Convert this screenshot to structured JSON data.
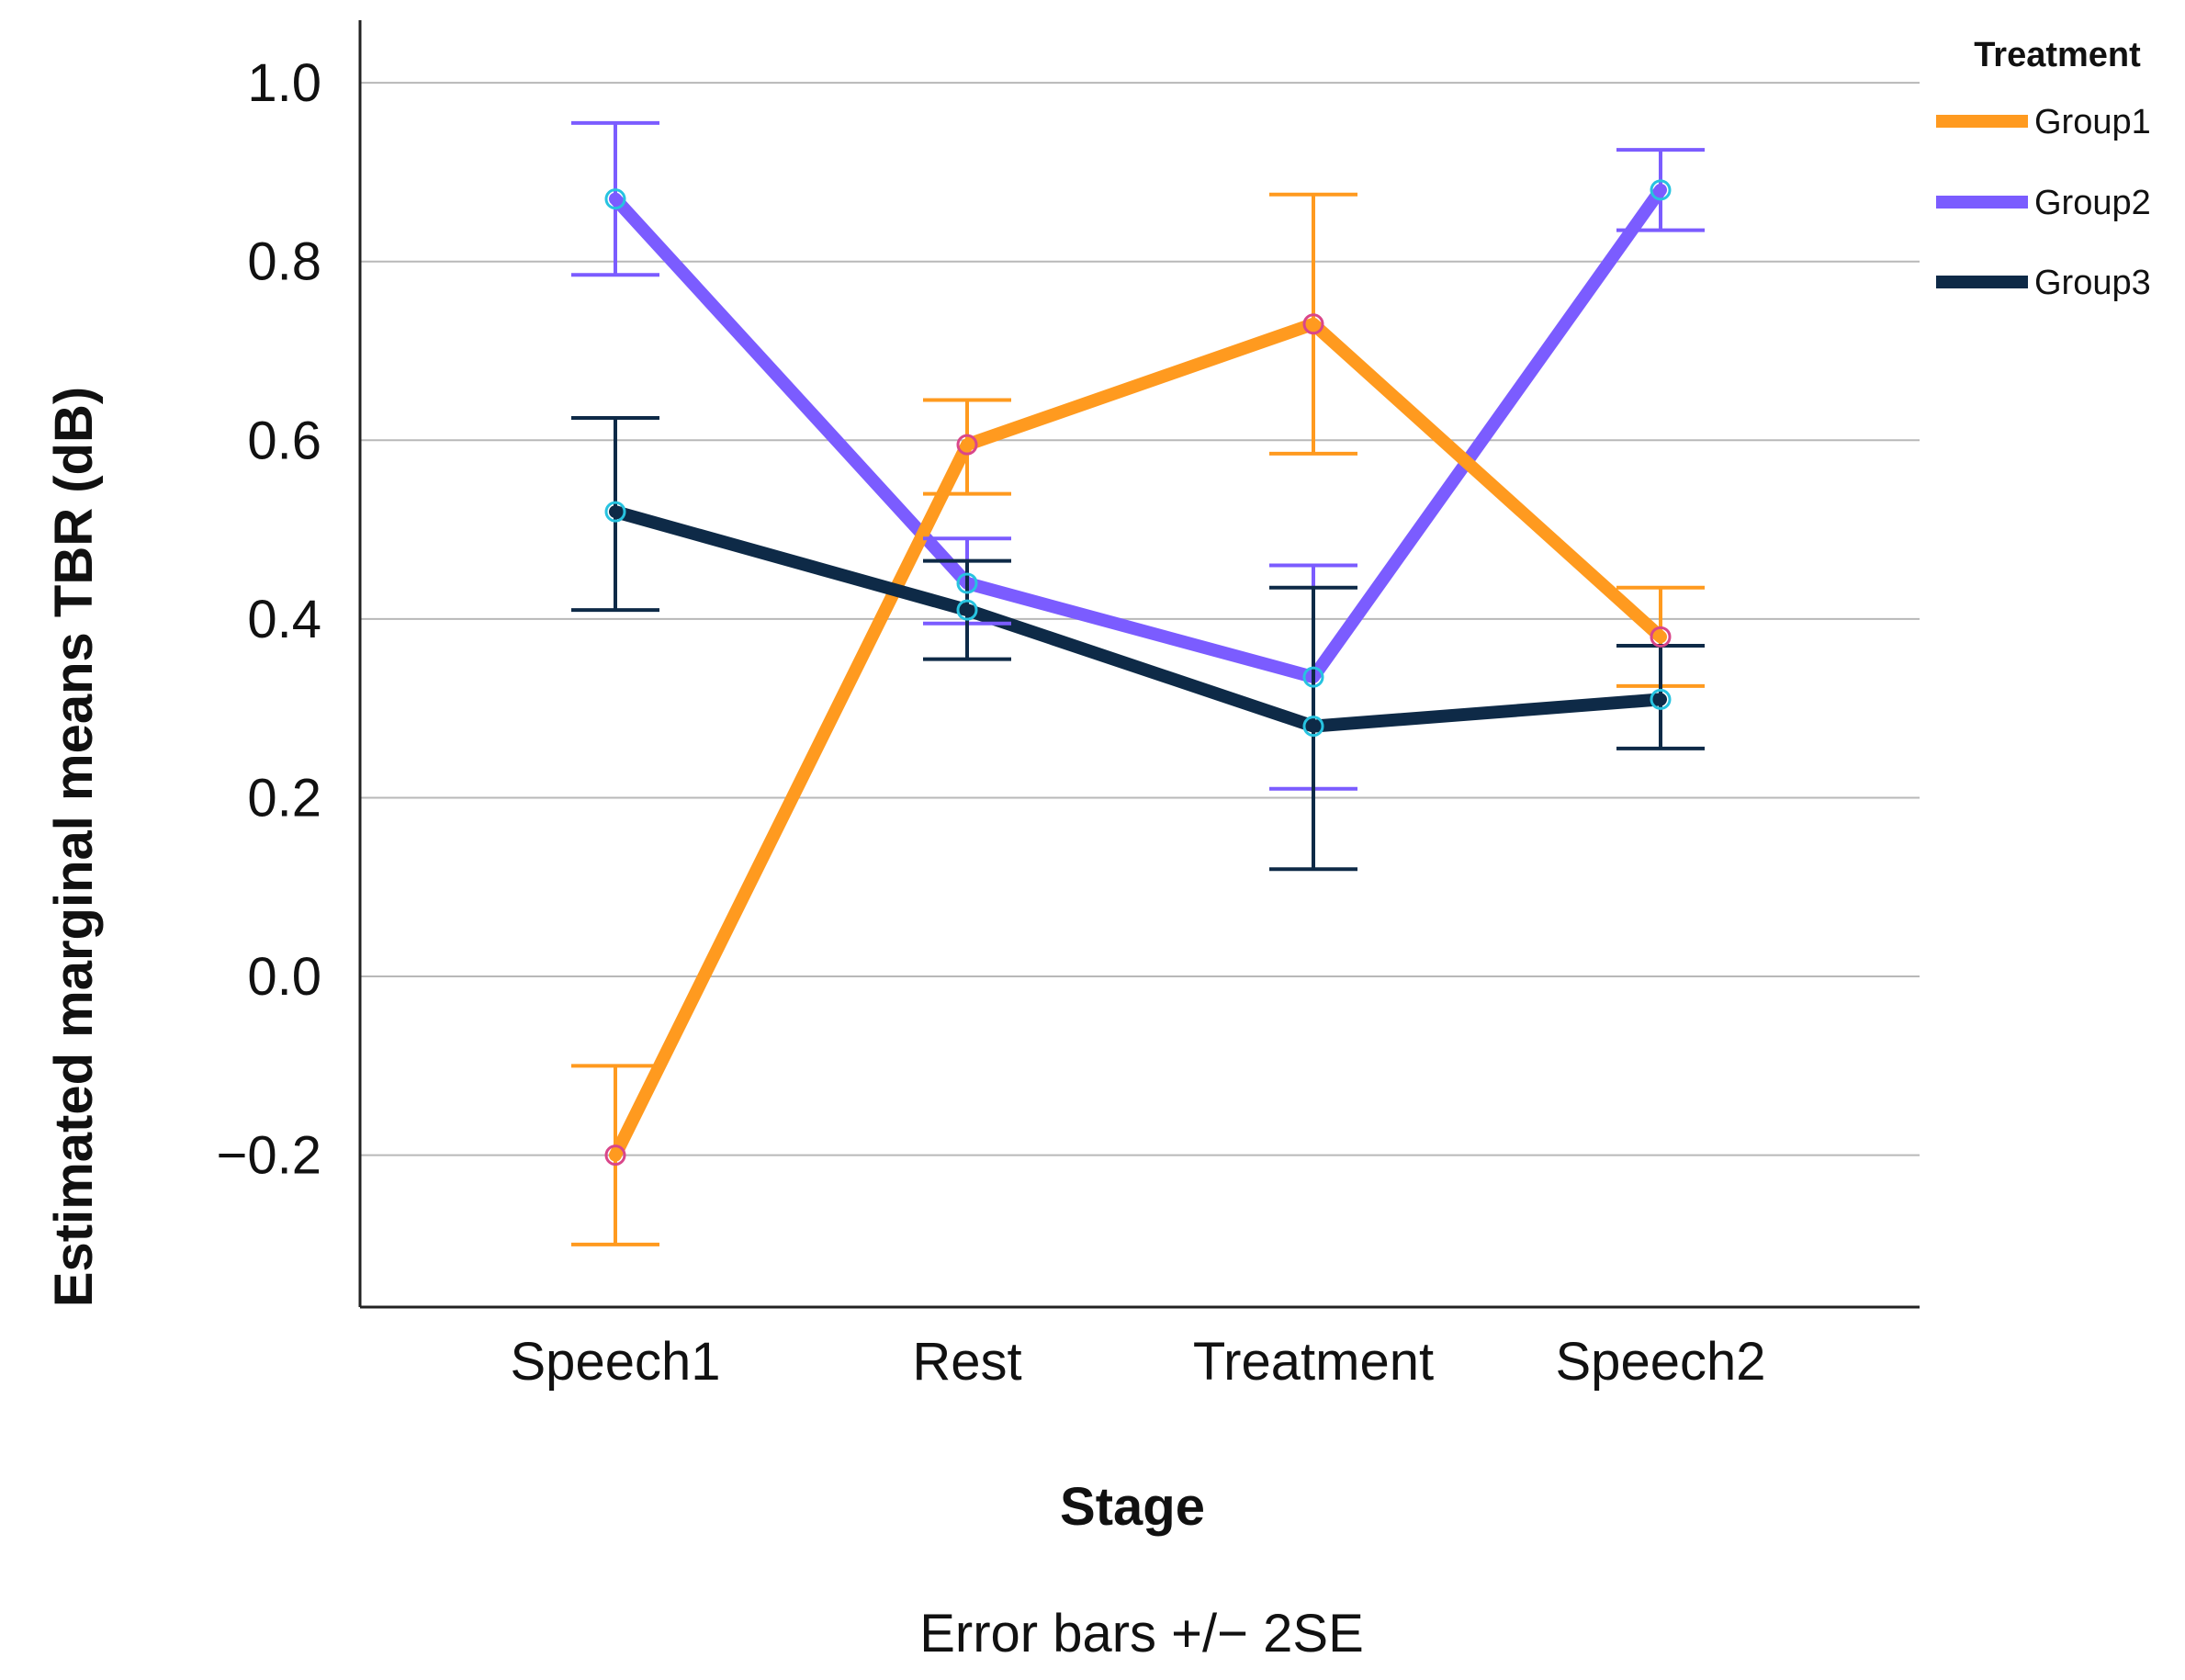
{
  "chart_data": {
    "type": "line",
    "title": "",
    "xlabel": "Stage",
    "ylabel": "Estimated marginal means TBR (dB)",
    "footnote": "Error bars +/− 2SE",
    "categories": [
      "Speech1",
      "Rest",
      "Treatment",
      "Speech2"
    ],
    "ylim": [
      -0.37,
      1.07
    ],
    "yticks": [
      -0.2,
      0.0,
      0.2,
      0.4,
      0.6,
      0.8,
      1.0
    ],
    "ytick_labels": [
      "−0.2",
      "0.0",
      "0.2",
      "0.4",
      "0.6",
      "0.8",
      "1.0"
    ],
    "grid": true,
    "legend": {
      "title": "Treatment",
      "placement": "top-right outside"
    },
    "series": [
      {
        "name": "Group1",
        "color": "#FF9A1F",
        "values": [
          -0.2,
          0.595,
          0.73,
          0.38
        ],
        "err_low": [
          -0.3,
          0.54,
          0.585,
          0.325
        ],
        "err_high": [
          -0.1,
          0.645,
          0.875,
          0.435
        ]
      },
      {
        "name": "Group2",
        "color": "#7B5CFF",
        "values": [
          0.87,
          0.44,
          0.335,
          0.88
        ],
        "err_low": [
          0.785,
          0.395,
          0.21,
          0.835
        ],
        "err_high": [
          0.955,
          0.49,
          0.46,
          0.925
        ]
      },
      {
        "name": "Group3",
        "color": "#0E2A47",
        "values": [
          0.52,
          0.41,
          0.28,
          0.31
        ],
        "err_low": [
          0.41,
          0.355,
          0.12,
          0.255
        ],
        "err_high": [
          0.625,
          0.465,
          0.435,
          0.37
        ]
      }
    ]
  }
}
